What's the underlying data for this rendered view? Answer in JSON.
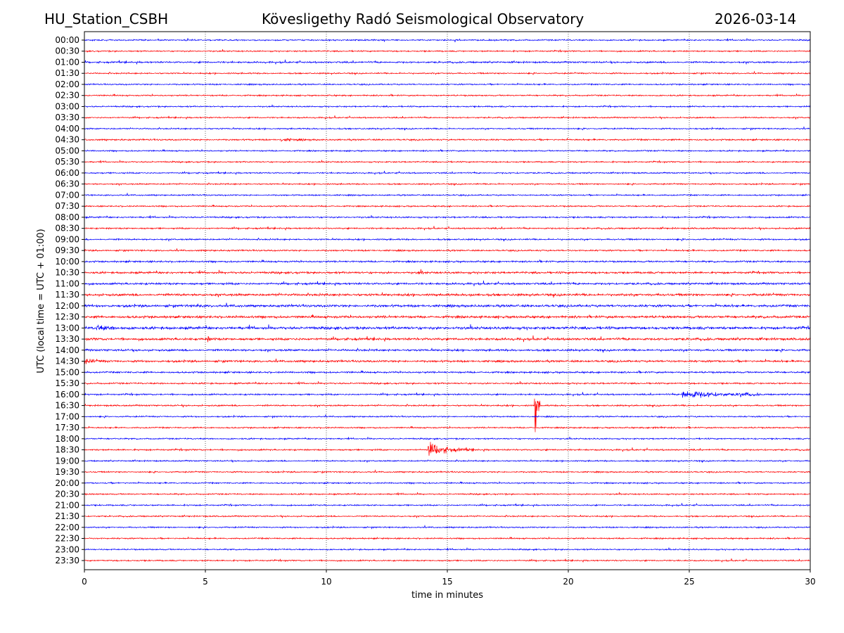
{
  "header": {
    "station": "HU_Station_CSBH",
    "observatory": "Kövesligethy Radó Seismological Observatory",
    "date": "2026-03-14"
  },
  "chart_data": {
    "type": "line",
    "title": "Kövesligethy Radó Seismological Observatory",
    "xlabel": "time in minutes",
    "ylabel": "UTC (local time = UTC + 01:00)",
    "xlim": [
      0,
      30
    ],
    "xticks": [
      "0",
      "5",
      "10",
      "15",
      "20",
      "25",
      "30"
    ],
    "xgrid": [
      5,
      10,
      15,
      20,
      25
    ],
    "row_labels": [
      "00:00",
      "00:30",
      "01:00",
      "01:30",
      "02:00",
      "02:30",
      "03:00",
      "03:30",
      "04:00",
      "04:30",
      "05:00",
      "05:30",
      "06:00",
      "06:30",
      "07:00",
      "07:30",
      "08:00",
      "08:30",
      "09:00",
      "09:30",
      "10:00",
      "10:30",
      "11:00",
      "11:30",
      "12:00",
      "12:30",
      "13:00",
      "13:30",
      "14:00",
      "14:30",
      "15:00",
      "15:30",
      "16:00",
      "16:30",
      "17:00",
      "17:30",
      "18:00",
      "18:30",
      "19:00",
      "19:30",
      "20:00",
      "20:30",
      "21:00",
      "21:30",
      "22:00",
      "22:30",
      "23:00",
      "23:30"
    ],
    "colors": [
      "#0000ff",
      "#ff0000"
    ],
    "noise_level_by_row": [
      0.08,
      0.08,
      0.1,
      0.08,
      0.08,
      0.08,
      0.08,
      0.08,
      0.08,
      0.09,
      0.08,
      0.08,
      0.08,
      0.08,
      0.08,
      0.08,
      0.09,
      0.09,
      0.09,
      0.09,
      0.1,
      0.12,
      0.12,
      0.14,
      0.14,
      0.14,
      0.16,
      0.14,
      0.12,
      0.12,
      0.1,
      0.09,
      0.09,
      0.09,
      0.08,
      0.08,
      0.08,
      0.09,
      0.08,
      0.08,
      0.08,
      0.08,
      0.08,
      0.08,
      0.08,
      0.08,
      0.08,
      0.08
    ],
    "events": [
      {
        "row": 33,
        "minute": 18.6,
        "amplitude": 5.5,
        "duration": 0.25,
        "label": "large spike"
      },
      {
        "row": 32,
        "minute": 24.7,
        "amplitude": 0.6,
        "duration": 3.2
      },
      {
        "row": 32,
        "minute": 27.0,
        "amplitude": 0.25,
        "duration": 1.2
      },
      {
        "row": 37,
        "minute": 14.2,
        "amplitude": 0.9,
        "duration": 2.0
      },
      {
        "row": 35,
        "minute": 23.5,
        "amplitude": 0.2,
        "duration": 0.6
      },
      {
        "row": 9,
        "minute": 8.1,
        "amplitude": 0.15,
        "duration": 1.5
      },
      {
        "row": 26,
        "minute": 0.5,
        "amplitude": 0.3,
        "duration": 1.5
      },
      {
        "row": 24,
        "minute": 4.6,
        "amplitude": 0.25,
        "duration": 0.4
      },
      {
        "row": 23,
        "minute": 15.8,
        "amplitude": 0.25,
        "duration": 0.6
      },
      {
        "row": 27,
        "minute": 5.1,
        "amplitude": 0.25,
        "duration": 0.4
      },
      {
        "row": 29,
        "minute": 0.0,
        "amplitude": 0.25,
        "duration": 1.2
      },
      {
        "row": 21,
        "minute": 13.8,
        "amplitude": 0.2,
        "duration": 0.4
      }
    ]
  }
}
